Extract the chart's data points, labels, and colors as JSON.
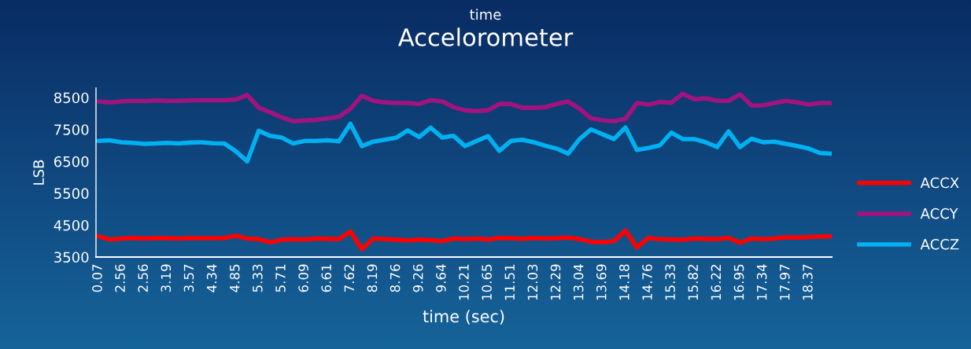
{
  "chart_data": {
    "type": "line",
    "subtitle": "time",
    "title": "Accelorometer",
    "xlabel": "time (sec)",
    "ylabel": "LSB",
    "categories": [
      "0.07",
      null,
      "2.56",
      null,
      "2.56",
      null,
      "3.19",
      null,
      "3.57",
      null,
      "4.34",
      null,
      "4.85",
      null,
      "5.33",
      null,
      "5.71",
      null,
      "6.09",
      null,
      "6.61",
      null,
      "7.62",
      null,
      "8.19",
      null,
      "8.76",
      null,
      "9.26",
      null,
      "9.64",
      null,
      "10.21",
      null,
      "10.65",
      null,
      "11.51",
      null,
      "12.03",
      null,
      "12.29",
      null,
      "13.04",
      null,
      "13.69",
      null,
      "14.18",
      null,
      "14.76",
      null,
      "15.33",
      null,
      "15.82",
      null,
      "16.22",
      null,
      "16.95",
      null,
      "17.34",
      null,
      "17.97",
      null,
      "18.37",
      null,
      null
    ],
    "series": [
      {
        "name": "ACCX",
        "color": "#ff0000",
        "values": [
          4150,
          4050,
          4080,
          4100,
          4080,
          4100,
          4090,
          4080,
          4100,
          4090,
          4090,
          4100,
          4170,
          4080,
          4060,
          3960,
          4040,
          4060,
          4050,
          4080,
          4070,
          4060,
          4300,
          3750,
          4080,
          4060,
          4040,
          4020,
          4050,
          4030,
          4000,
          4080,
          4060,
          4080,
          4050,
          4100,
          4090,
          4070,
          4100,
          4080,
          4090,
          4110,
          4060,
          3980,
          3960,
          4000,
          4330,
          3800,
          4100,
          4060,
          4050,
          4040,
          4080,
          4070,
          4060,
          4100,
          3950,
          4080,
          4060,
          4080,
          4120,
          4110,
          4130,
          4140,
          4150
        ]
      },
      {
        "name": "ACCY",
        "color": "#a3137f",
        "values": [
          8380,
          8350,
          8380,
          8400,
          8390,
          8410,
          8400,
          8400,
          8410,
          8420,
          8420,
          8420,
          8440,
          8580,
          8180,
          8040,
          7880,
          7760,
          7780,
          7800,
          7850,
          7900,
          8150,
          8560,
          8400,
          8350,
          8330,
          8330,
          8300,
          8420,
          8380,
          8200,
          8100,
          8080,
          8100,
          8300,
          8300,
          8180,
          8180,
          8200,
          8300,
          8380,
          8150,
          7850,
          7790,
          7760,
          7830,
          8330,
          8280,
          8360,
          8340,
          8620,
          8450,
          8480,
          8400,
          8400,
          8600,
          8250,
          8260,
          8330,
          8400,
          8350,
          8280,
          8330,
          8330
        ]
      },
      {
        "name": "ACCZ",
        "color": "#00b0f0",
        "values": [
          7140,
          7160,
          7100,
          7080,
          7050,
          7060,
          7080,
          7060,
          7090,
          7100,
          7070,
          7060,
          6820,
          6500,
          7460,
          7300,
          7250,
          7060,
          7140,
          7140,
          7160,
          7130,
          7680,
          6980,
          7120,
          7180,
          7240,
          7470,
          7260,
          7560,
          7250,
          7300,
          6980,
          7140,
          7290,
          6830,
          7140,
          7180,
          7100,
          6990,
          6900,
          6740,
          7200,
          7500,
          7350,
          7200,
          7560,
          6860,
          6920,
          7000,
          7400,
          7200,
          7200,
          7100,
          6950,
          7440,
          6950,
          7210,
          7100,
          7120,
          7050,
          6980,
          6900,
          6760,
          6740
        ]
      }
    ],
    "ylim": [
      3500,
      8800
    ],
    "yticks": [
      3500,
      4500,
      5500,
      6500,
      7500,
      8500
    ],
    "grid": false,
    "legend": "right",
    "marker": "none",
    "line_style": "solid"
  }
}
